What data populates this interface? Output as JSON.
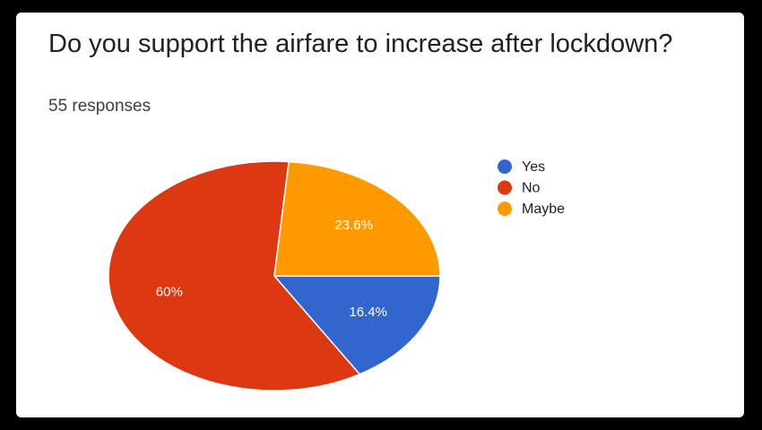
{
  "chart_data": {
    "type": "pie",
    "title": "Do you support the airfare to increase after lockdown?",
    "subtitle": "55 responses",
    "categories": [
      "Yes",
      "No",
      "Maybe"
    ],
    "values": [
      16.4,
      60,
      23.6
    ],
    "value_labels": [
      "16.4%",
      "60%",
      "23.6%"
    ],
    "colors": [
      "#3366cc",
      "#dc3912",
      "#ff9900"
    ],
    "legend": "right"
  }
}
